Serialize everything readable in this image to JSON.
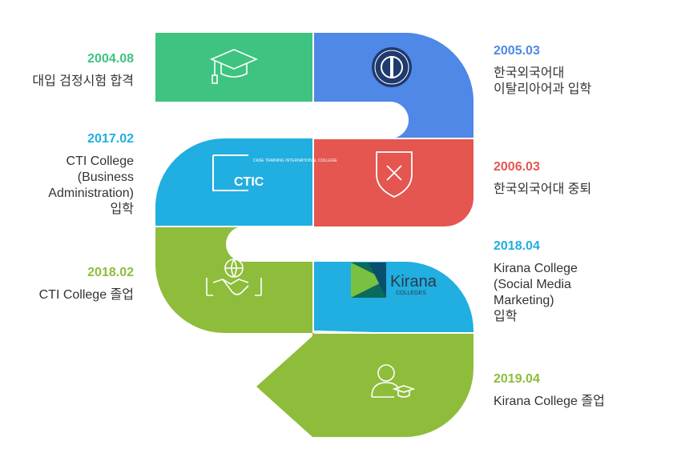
{
  "colors": {
    "green": "#3fc380",
    "blue": "#4f88e6",
    "red": "#e4564f",
    "cyan": "#21aee0",
    "lime": "#8ebd3b"
  },
  "milestones": [
    {
      "date": "2004.08",
      "lines": [
        "대입 검정시험 합격"
      ],
      "color": "#3fc380",
      "icon": "graduation-cap-icon"
    },
    {
      "date": "2005.03",
      "lines": [
        "한국외국어대",
        "이탈리아어과 입학"
      ],
      "color": "#4f88e6",
      "icon": "university-seal-icon"
    },
    {
      "date": "2006.03",
      "lines": [
        "한국외국어대 중퇴"
      ],
      "color": "#e4564f",
      "icon": "shield-x-icon"
    },
    {
      "date": "2017.02",
      "lines": [
        "CTI College",
        "(Business",
        "Administration)",
        "입학"
      ],
      "color": "#21aee0",
      "icon": "ctic-logo"
    },
    {
      "date": "2018.02",
      "lines": [
        "CTI College 졸업"
      ],
      "color": "#8ebd3b",
      "icon": "handshake-globe-icon"
    },
    {
      "date": "2018.04",
      "lines": [
        "Kirana College",
        "(Social Media",
        "Marketing)",
        "입학"
      ],
      "color": "#21aee0",
      "icon": "kirana-logo"
    },
    {
      "date": "2019.04",
      "lines": [
        "Kirana College 졸업"
      ],
      "color": "#8ebd3b",
      "icon": "graduate-person-icon"
    }
  ],
  "logos": {
    "ctic_small": "CASE TRAINING INTERNATIONAL COLLEGE",
    "ctic_main": "CTIC",
    "kirana_main": "Kirana",
    "kirana_sub": "COLLEGES"
  }
}
